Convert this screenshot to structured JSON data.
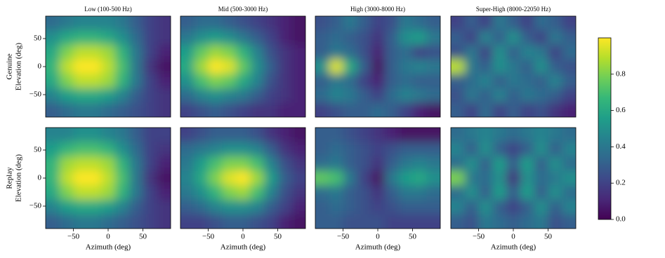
{
  "chart_data": [
    {
      "type": "heatmap",
      "title": "Low (100-500 Hz)",
      "row_label": "Genuine",
      "ylabel": "Elevation (deg)",
      "xlim": [
        -90,
        90
      ],
      "ylim": [
        -90,
        90
      ],
      "yticks": [
        {
          "value": -50,
          "label": "−50"
        },
        0,
        50
      ],
      "z": [
        [
          0.35,
          0.4,
          0.45,
          0.45,
          0.45,
          0.4,
          0.3,
          0.2,
          0.15
        ],
        [
          0.5,
          0.6,
          0.65,
          0.65,
          0.6,
          0.5,
          0.35,
          0.2,
          0.15
        ],
        [
          0.6,
          0.8,
          0.9,
          0.9,
          0.85,
          0.65,
          0.4,
          0.2,
          0.1
        ],
        [
          0.65,
          0.9,
          1.0,
          1.0,
          0.9,
          0.7,
          0.4,
          0.15,
          0.05
        ],
        [
          0.6,
          0.8,
          0.9,
          0.9,
          0.85,
          0.65,
          0.4,
          0.2,
          0.1
        ],
        [
          0.45,
          0.55,
          0.6,
          0.6,
          0.55,
          0.45,
          0.3,
          0.2,
          0.15
        ],
        [
          0.3,
          0.35,
          0.4,
          0.4,
          0.35,
          0.3,
          0.25,
          0.2,
          0.15
        ]
      ]
    },
    {
      "type": "heatmap",
      "title": "Mid (500-3000 Hz)",
      "xlim": [
        -90,
        90
      ],
      "ylim": [
        -90,
        90
      ],
      "z": [
        [
          0.3,
          0.35,
          0.35,
          0.3,
          0.25,
          0.2,
          0.15,
          0.1,
          0.05
        ],
        [
          0.4,
          0.5,
          0.55,
          0.5,
          0.4,
          0.3,
          0.2,
          0.1,
          0.05
        ],
        [
          0.55,
          0.75,
          0.85,
          0.8,
          0.65,
          0.45,
          0.25,
          0.15,
          0.1
        ],
        [
          0.6,
          0.85,
          1.0,
          0.95,
          0.75,
          0.5,
          0.3,
          0.15,
          0.1
        ],
        [
          0.5,
          0.7,
          0.8,
          0.75,
          0.6,
          0.45,
          0.25,
          0.15,
          0.1
        ],
        [
          0.35,
          0.45,
          0.5,
          0.45,
          0.4,
          0.3,
          0.2,
          0.15,
          0.1
        ],
        [
          0.2,
          0.25,
          0.3,
          0.25,
          0.2,
          0.15,
          0.15,
          0.1,
          0.1
        ]
      ]
    },
    {
      "type": "heatmap",
      "title": "High (3000-8000 Hz)",
      "xlim": [
        -90,
        90
      ],
      "ylim": [
        -90,
        90
      ],
      "z": [
        [
          0.25,
          0.3,
          0.4,
          0.3,
          0.2,
          0.25,
          0.4,
          0.35,
          0.3
        ],
        [
          0.3,
          0.35,
          0.3,
          0.25,
          0.15,
          0.3,
          0.5,
          0.55,
          0.4
        ],
        [
          0.3,
          0.4,
          0.35,
          0.25,
          0.1,
          0.3,
          0.35,
          0.2,
          0.25
        ],
        [
          0.5,
          0.95,
          0.6,
          0.3,
          0.05,
          0.3,
          0.4,
          0.45,
          0.4
        ],
        [
          0.3,
          0.4,
          0.35,
          0.2,
          0.1,
          0.3,
          0.35,
          0.3,
          0.3
        ],
        [
          0.35,
          0.45,
          0.4,
          0.3,
          0.2,
          0.35,
          0.45,
          0.4,
          0.35
        ],
        [
          0.2,
          0.25,
          0.3,
          0.3,
          0.35,
          0.3,
          0.2,
          0.1,
          0.05
        ]
      ]
    },
    {
      "type": "heatmap",
      "title": "Super-High (8000-22050 Hz)",
      "xlim": [
        -90,
        90
      ],
      "ylim": [
        -90,
        90
      ],
      "z": [
        [
          0.2,
          0.3,
          0.2,
          0.4,
          0.3,
          0.2,
          0.35,
          0.3,
          0.2
        ],
        [
          0.3,
          0.2,
          0.45,
          0.3,
          0.5,
          0.3,
          0.2,
          0.4,
          0.3
        ],
        [
          0.25,
          0.4,
          0.2,
          0.5,
          0.3,
          0.45,
          0.4,
          0.2,
          0.35
        ],
        [
          0.9,
          0.4,
          0.3,
          0.5,
          0.4,
          0.3,
          0.5,
          0.3,
          0.25
        ],
        [
          0.3,
          0.35,
          0.45,
          0.3,
          0.4,
          0.35,
          0.3,
          0.45,
          0.3
        ],
        [
          0.25,
          0.4,
          0.3,
          0.45,
          0.3,
          0.4,
          0.35,
          0.3,
          0.2
        ],
        [
          0.3,
          0.2,
          0.35,
          0.2,
          0.3,
          0.2,
          0.25,
          0.15,
          0.1
        ]
      ]
    },
    {
      "type": "heatmap",
      "row_label": "Replay",
      "ylabel": "Elevation (deg)",
      "xlabel": "Azimuth (deg)",
      "xlim": [
        -90,
        90
      ],
      "ylim": [
        -90,
        90
      ],
      "xticks": [
        {
          "value": -50,
          "label": "−50"
        },
        0,
        50
      ],
      "yticks": [
        {
          "value": -50,
          "label": "−50"
        },
        0,
        50
      ],
      "z": [
        [
          0.45,
          0.45,
          0.5,
          0.5,
          0.45,
          0.4,
          0.3,
          0.2,
          0.2
        ],
        [
          0.55,
          0.65,
          0.7,
          0.7,
          0.65,
          0.5,
          0.35,
          0.2,
          0.15
        ],
        [
          0.65,
          0.85,
          0.9,
          0.9,
          0.85,
          0.65,
          0.4,
          0.2,
          0.1
        ],
        [
          0.65,
          0.9,
          1.0,
          1.0,
          0.9,
          0.7,
          0.4,
          0.15,
          0.05
        ],
        [
          0.6,
          0.8,
          0.9,
          0.9,
          0.85,
          0.65,
          0.4,
          0.2,
          0.1
        ],
        [
          0.45,
          0.55,
          0.6,
          0.6,
          0.55,
          0.45,
          0.3,
          0.2,
          0.15
        ],
        [
          0.3,
          0.35,
          0.4,
          0.4,
          0.35,
          0.3,
          0.25,
          0.2,
          0.15
        ]
      ]
    },
    {
      "type": "heatmap",
      "xlabel": "Azimuth (deg)",
      "xlim": [
        -90,
        90
      ],
      "ylim": [
        -90,
        90
      ],
      "xticks": [
        {
          "value": -50,
          "label": "−50"
        },
        0,
        50
      ],
      "z": [
        [
          0.2,
          0.25,
          0.3,
          0.3,
          0.3,
          0.25,
          0.15,
          0.1,
          0.05
        ],
        [
          0.35,
          0.4,
          0.45,
          0.5,
          0.5,
          0.45,
          0.3,
          0.15,
          0.1
        ],
        [
          0.4,
          0.55,
          0.7,
          0.8,
          0.8,
          0.7,
          0.45,
          0.25,
          0.15
        ],
        [
          0.45,
          0.6,
          0.8,
          0.95,
          1.0,
          0.85,
          0.55,
          0.3,
          0.2
        ],
        [
          0.4,
          0.5,
          0.65,
          0.8,
          0.85,
          0.7,
          0.45,
          0.25,
          0.15
        ],
        [
          0.3,
          0.35,
          0.45,
          0.5,
          0.5,
          0.45,
          0.3,
          0.2,
          0.1
        ],
        [
          0.2,
          0.2,
          0.25,
          0.3,
          0.3,
          0.25,
          0.2,
          0.1,
          0.05
        ]
      ]
    },
    {
      "type": "heatmap",
      "xlabel": "Azimuth (deg)",
      "xlim": [
        -90,
        90
      ],
      "ylim": [
        -90,
        90
      ],
      "xticks": [
        {
          "value": -50,
          "label": "−50"
        },
        0,
        50
      ],
      "z": [
        [
          0.3,
          0.3,
          0.25,
          0.2,
          0.15,
          0.1,
          0.05,
          0.05,
          0.05
        ],
        [
          0.3,
          0.35,
          0.3,
          0.25,
          0.2,
          0.25,
          0.3,
          0.3,
          0.3
        ],
        [
          0.35,
          0.4,
          0.3,
          0.25,
          0.15,
          0.3,
          0.4,
          0.45,
          0.4
        ],
        [
          0.75,
          0.7,
          0.4,
          0.2,
          0.05,
          0.4,
          0.55,
          0.6,
          0.5
        ],
        [
          0.35,
          0.4,
          0.3,
          0.25,
          0.15,
          0.3,
          0.4,
          0.4,
          0.35
        ],
        [
          0.3,
          0.35,
          0.3,
          0.25,
          0.2,
          0.25,
          0.3,
          0.3,
          0.3
        ],
        [
          0.3,
          0.3,
          0.25,
          0.25,
          0.25,
          0.2,
          0.2,
          0.2,
          0.2
        ]
      ]
    },
    {
      "type": "heatmap",
      "xlabel": "Azimuth (deg)",
      "xlim": [
        -90,
        90
      ],
      "ylim": [
        -90,
        90
      ],
      "xticks": [
        {
          "value": -50,
          "label": "−50"
        },
        0,
        50
      ],
      "z": [
        [
          0.35,
          0.4,
          0.45,
          0.4,
          0.35,
          0.4,
          0.45,
          0.4,
          0.35
        ],
        [
          0.45,
          0.3,
          0.5,
          0.3,
          0.2,
          0.3,
          0.5,
          0.3,
          0.45
        ],
        [
          0.35,
          0.5,
          0.3,
          0.55,
          0.3,
          0.55,
          0.3,
          0.5,
          0.35
        ],
        [
          0.8,
          0.4,
          0.35,
          0.5,
          0.15,
          0.5,
          0.35,
          0.4,
          0.5
        ],
        [
          0.35,
          0.5,
          0.3,
          0.55,
          0.3,
          0.55,
          0.3,
          0.5,
          0.35
        ],
        [
          0.45,
          0.3,
          0.5,
          0.3,
          0.2,
          0.3,
          0.5,
          0.3,
          0.45
        ],
        [
          0.3,
          0.25,
          0.4,
          0.35,
          0.3,
          0.35,
          0.4,
          0.25,
          0.3
        ]
      ]
    }
  ],
  "colorbar": {
    "colormap": "viridis",
    "lim": [
      0,
      1
    ],
    "ticks": [
      {
        "value": 0,
        "label": "0.0"
      },
      {
        "value": 0.2,
        "label": "0.2"
      },
      {
        "value": 0.4,
        "label": "0.4"
      },
      {
        "value": 0.6,
        "label": "0.6"
      },
      {
        "value": 0.8,
        "label": "0.8"
      }
    ]
  }
}
